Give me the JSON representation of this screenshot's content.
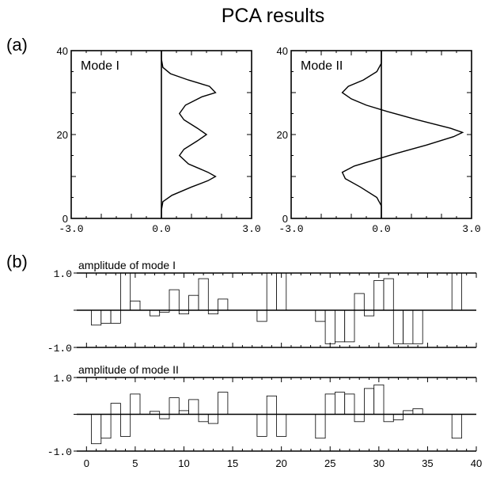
{
  "title": "PCA results",
  "panel_labels": {
    "a": "(a)",
    "b": "(b)"
  },
  "chart_data": [
    {
      "type": "line",
      "panel": "a-left",
      "label": "Mode I",
      "xlim": [
        -3.0,
        3.0
      ],
      "ylim": [
        0,
        40
      ],
      "xticks": [
        "-3.0",
        "0.0",
        "3.0"
      ],
      "yticks": [
        "0",
        "20",
        "40"
      ],
      "x": [
        0,
        0,
        0.05,
        0.35,
        1.0,
        1.55,
        1.8,
        1.55,
        0.9,
        0.6,
        0.75,
        1.2,
        1.5,
        1.2,
        0.75,
        0.6,
        0.8,
        1.35,
        1.8,
        1.6,
        0.9,
        0.3,
        0.05,
        0,
        0
      ],
      "y": [
        0,
        2,
        4,
        5.5,
        7.5,
        9,
        10,
        11,
        13,
        15,
        16.5,
        18.5,
        20,
        21.5,
        23.5,
        25,
        27,
        29,
        30,
        31.5,
        33,
        34.5,
        36,
        38,
        40
      ]
    },
    {
      "type": "line",
      "panel": "a-right",
      "label": "Mode II",
      "xlim": [
        -3.0,
        3.0
      ],
      "ylim": [
        0,
        40
      ],
      "xticks": [
        "-3.0",
        "0.0",
        "3.0"
      ],
      "yticks": [
        "0",
        "20",
        "40"
      ],
      "x": [
        0,
        0,
        -0.15,
        -0.7,
        -1.2,
        -1.3,
        -0.9,
        -0.2,
        0.5,
        1.5,
        2.4,
        2.7,
        2.3,
        1.2,
        0.2,
        -0.5,
        -1.0,
        -1.3,
        -1.1,
        -0.6,
        -0.15,
        0,
        0
      ],
      "y": [
        0,
        3,
        5,
        7.5,
        9.5,
        11,
        12.5,
        14,
        15.5,
        17.5,
        19.5,
        20.5,
        21.5,
        23.5,
        25.5,
        27,
        28.5,
        30,
        31.5,
        33,
        35,
        37,
        40
      ]
    },
    {
      "type": "bar",
      "panel": "b-top",
      "label": "amplitude of mode I",
      "xlim": [
        -1,
        40
      ],
      "ylim": [
        -1.0,
        1.0
      ],
      "yticks": [
        "1.0",
        "-1.0"
      ],
      "x": [
        1,
        2,
        3,
        4,
        5,
        7,
        8,
        9,
        10,
        11,
        12,
        13,
        14,
        18,
        19,
        20,
        24,
        25,
        26,
        27,
        28,
        29,
        30,
        31,
        32,
        33,
        34,
        38
      ],
      "values": [
        -0.4,
        -0.35,
        -0.35,
        1.0,
        0.25,
        -0.15,
        -0.05,
        0.55,
        -0.1,
        0.4,
        0.85,
        -0.1,
        0.3,
        -0.3,
        1.0,
        1.0,
        -0.3,
        -0.9,
        -0.85,
        -0.85,
        0.45,
        -0.15,
        0.8,
        0.85,
        -0.9,
        -0.9,
        -0.9,
        1.0
      ]
    },
    {
      "type": "bar",
      "panel": "b-bottom",
      "label": "amplitude of mode II",
      "xlim": [
        -1,
        40
      ],
      "ylim": [
        -1.0,
        1.0
      ],
      "yticks": [
        "1.0",
        "-1.0"
      ],
      "xticks": [
        "0",
        "5",
        "10",
        "15",
        "20",
        "25",
        "30",
        "35",
        "40"
      ],
      "x": [
        1,
        2,
        3,
        4,
        5,
        7,
        8,
        9,
        10,
        11,
        12,
        13,
        14,
        18,
        19,
        20,
        24,
        25,
        26,
        27,
        28,
        29,
        30,
        31,
        32,
        33,
        34,
        38
      ],
      "values": [
        -0.8,
        -0.65,
        0.3,
        -0.6,
        0.55,
        0.08,
        -0.12,
        0.45,
        0.1,
        0.4,
        -0.2,
        -0.25,
        0.6,
        -0.6,
        0.5,
        -0.6,
        -0.65,
        0.55,
        0.6,
        0.55,
        -0.2,
        0.7,
        0.8,
        -0.2,
        -0.15,
        0.1,
        0.15,
        -0.65
      ]
    }
  ]
}
